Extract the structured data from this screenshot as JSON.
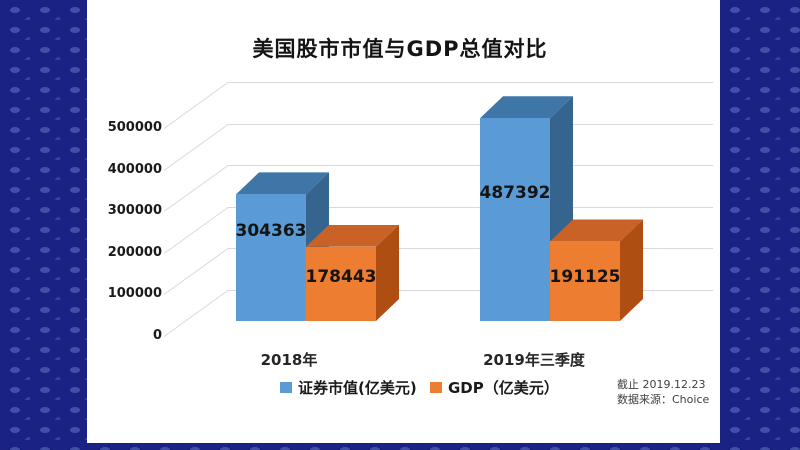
{
  "title": "美国股市市值与GDP总值对比",
  "legend": [
    {
      "label": "证券市值(亿美元)",
      "color": "#5B9BD5"
    },
    {
      "label": "GDP（亿美元）",
      "color": "#ED7D31"
    }
  ],
  "source_note": {
    "line1": "截止 2019.12.23",
    "line2": "数据来源：Choice"
  },
  "colors": {
    "panel": "#FFFFFF",
    "background": "#1A2383",
    "gridline": "#D9D9D9",
    "series1_front": "#5B9BD5",
    "series1_top": "#3F76A8",
    "series1_side": "#35648F",
    "series2_front": "#ED7D31",
    "series2_top": "#C96226",
    "series2_side": "#AE4E12"
  },
  "chart_data": {
    "type": "bar",
    "variant": "3d-clustered",
    "title": "美国股市市值与GDP总值对比",
    "categories": [
      "2018年",
      "2019年三季度"
    ],
    "series": [
      {
        "name": "证券市值(亿美元)",
        "color": "#5B9BD5",
        "values": [
          304363,
          487392
        ]
      },
      {
        "name": "GDP（亿美元）",
        "color": "#ED7D31",
        "values": [
          178443,
          191125
        ]
      }
    ],
    "xlabel": "",
    "ylabel": "",
    "ylim": [
      0,
      500000
    ],
    "y_ticks": [
      0,
      100000,
      200000,
      300000,
      400000,
      500000
    ],
    "grid": true,
    "legend_position": "bottom"
  }
}
